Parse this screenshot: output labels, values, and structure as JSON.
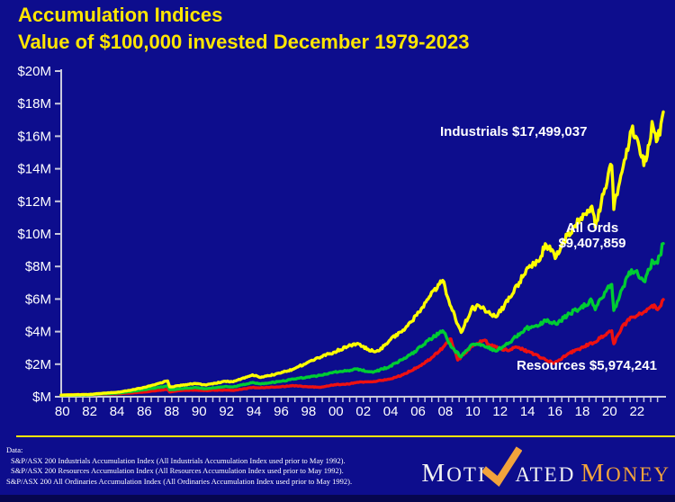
{
  "slide": {
    "title_line1": "Accumulation Indices",
    "title_line2": "Value of $100,000 invested December 1979-2023"
  },
  "chart_data": {
    "type": "line",
    "title": "Accumulation Indices",
    "subtitle": "Value of $100,000 invested December 1979-2023",
    "unit": "millions of dollars (AUD)",
    "grid": "off",
    "legend_position": "direct line labels",
    "x_axis": {
      "start": 1979.92,
      "end": 2023.92,
      "minor_tick_interval_years": 0.5,
      "tick_labels": [
        {
          "label": "80",
          "year": 1980
        },
        {
          "label": "82",
          "year": 1982
        },
        {
          "label": "84",
          "year": 1984
        },
        {
          "label": "86",
          "year": 1986
        },
        {
          "label": "88",
          "year": 1988
        },
        {
          "label": "90",
          "year": 1990
        },
        {
          "label": "92",
          "year": 1992
        },
        {
          "label": "94",
          "year": 1994
        },
        {
          "label": "96",
          "year": 1996
        },
        {
          "label": "98",
          "year": 1998
        },
        {
          "label": "00",
          "year": 2000
        },
        {
          "label": "02",
          "year": 2002
        },
        {
          "label": "04",
          "year": 2004
        },
        {
          "label": "06",
          "year": 2006
        },
        {
          "label": "08",
          "year": 2008
        },
        {
          "label": "10",
          "year": 2010
        },
        {
          "label": "12",
          "year": 2012
        },
        {
          "label": "14",
          "year": 2014
        },
        {
          "label": "16",
          "year": 2016
        },
        {
          "label": "18",
          "year": 2018
        },
        {
          "label": "20",
          "year": 2020
        },
        {
          "label": "22",
          "year": 2022
        }
      ]
    },
    "y_axis": {
      "min": 0,
      "max": 20,
      "tick_interval": 2,
      "tick_labels": [
        "$M",
        "$2M",
        "$4M",
        "$6M",
        "$8M",
        "$10M",
        "$12M",
        "$14M",
        "$16M",
        "$18M",
        "$20M"
      ]
    },
    "series": [
      {
        "name": "Industrials",
        "color": "#ffff00",
        "final_value": 17499037,
        "label_text": "Industrials $17,499,037",
        "points": [
          [
            1979.92,
            0.1
          ],
          [
            1981,
            0.12
          ],
          [
            1982,
            0.14
          ],
          [
            1983,
            0.22
          ],
          [
            1984,
            0.27
          ],
          [
            1985,
            0.4
          ],
          [
            1986,
            0.58
          ],
          [
            1987.7,
            0.97
          ],
          [
            1987.85,
            0.6
          ],
          [
            1988.5,
            0.68
          ],
          [
            1989.7,
            0.82
          ],
          [
            1990.5,
            0.72
          ],
          [
            1991.9,
            0.95
          ],
          [
            1992.5,
            0.92
          ],
          [
            1993.9,
            1.35
          ],
          [
            1994.5,
            1.18
          ],
          [
            1995.9,
            1.45
          ],
          [
            1996.9,
            1.7
          ],
          [
            1997.9,
            2.1
          ],
          [
            1998.9,
            2.45
          ],
          [
            1999.9,
            2.75
          ],
          [
            2000.9,
            3.1
          ],
          [
            2001.5,
            3.25
          ],
          [
            2002.7,
            2.8
          ],
          [
            2003.2,
            2.85
          ],
          [
            2003.9,
            3.45
          ],
          [
            2004.9,
            4.1
          ],
          [
            2005.9,
            5.0
          ],
          [
            2006.9,
            6.2
          ],
          [
            2007.8,
            7.15
          ],
          [
            2008.5,
            5.3
          ],
          [
            2009.15,
            3.95
          ],
          [
            2009.9,
            5.4
          ],
          [
            2010.5,
            5.55
          ],
          [
            2011.7,
            4.9
          ],
          [
            2012.9,
            6.3
          ],
          [
            2013.9,
            7.8
          ],
          [
            2014.9,
            8.4
          ],
          [
            2015.3,
            9.4
          ],
          [
            2016.1,
            8.6
          ],
          [
            2016.9,
            9.9
          ],
          [
            2017.9,
            11.0
          ],
          [
            2018.7,
            11.7
          ],
          [
            2018.95,
            10.4
          ],
          [
            2019.9,
            13.7
          ],
          [
            2020.15,
            14.2
          ],
          [
            2020.3,
            11.5
          ],
          [
            2020.9,
            13.8
          ],
          [
            2021.6,
            16.4
          ],
          [
            2021.9,
            16.0
          ],
          [
            2022.5,
            14.2
          ],
          [
            2022.9,
            15.5
          ],
          [
            2023.1,
            16.9
          ],
          [
            2023.5,
            15.8
          ],
          [
            2023.92,
            17.5
          ]
        ]
      },
      {
        "name": "All Ords",
        "color": "#00cc33",
        "final_value": 9407859,
        "label_line1": "All Ords",
        "label_line2": "$9,407,859",
        "points": [
          [
            1979.92,
            0.1
          ],
          [
            1981,
            0.11
          ],
          [
            1982,
            0.12
          ],
          [
            1983,
            0.19
          ],
          [
            1984,
            0.22
          ],
          [
            1985,
            0.32
          ],
          [
            1986,
            0.44
          ],
          [
            1987.7,
            0.66
          ],
          [
            1987.85,
            0.42
          ],
          [
            1988.5,
            0.48
          ],
          [
            1989.7,
            0.57
          ],
          [
            1990.5,
            0.49
          ],
          [
            1991.9,
            0.63
          ],
          [
            1992.5,
            0.6
          ],
          [
            1993.9,
            0.88
          ],
          [
            1994.5,
            0.78
          ],
          [
            1995.9,
            0.94
          ],
          [
            1996.9,
            1.08
          ],
          [
            1997.9,
            1.2
          ],
          [
            1998.9,
            1.32
          ],
          [
            1999.9,
            1.52
          ],
          [
            2000.9,
            1.6
          ],
          [
            2001.5,
            1.7
          ],
          [
            2002.7,
            1.5
          ],
          [
            2003.9,
            1.85
          ],
          [
            2004.9,
            2.3
          ],
          [
            2005.9,
            2.85
          ],
          [
            2006.9,
            3.55
          ],
          [
            2007.8,
            4.05
          ],
          [
            2008.5,
            3.0
          ],
          [
            2009.15,
            2.45
          ],
          [
            2009.9,
            3.2
          ],
          [
            2010.5,
            3.25
          ],
          [
            2011.7,
            2.8
          ],
          [
            2012.9,
            3.5
          ],
          [
            2013.9,
            4.2
          ],
          [
            2014.9,
            4.4
          ],
          [
            2015.3,
            4.7
          ],
          [
            2016.1,
            4.45
          ],
          [
            2016.9,
            5.0
          ],
          [
            2017.9,
            5.5
          ],
          [
            2018.7,
            5.9
          ],
          [
            2018.95,
            5.35
          ],
          [
            2019.9,
            6.8
          ],
          [
            2020.15,
            6.9
          ],
          [
            2020.3,
            5.3
          ],
          [
            2020.9,
            6.6
          ],
          [
            2021.6,
            7.8
          ],
          [
            2021.9,
            7.7
          ],
          [
            2022.5,
            7.1
          ],
          [
            2022.9,
            7.8
          ],
          [
            2023.1,
            8.4
          ],
          [
            2023.5,
            8.2
          ],
          [
            2023.92,
            9.41
          ]
        ]
      },
      {
        "name": "Resources",
        "color": "#ee1111",
        "final_value": 5974241,
        "label_text": "Resources $5,974,241",
        "points": [
          [
            1979.92,
            0.1
          ],
          [
            1981,
            0.14
          ],
          [
            1982,
            0.12
          ],
          [
            1983,
            0.17
          ],
          [
            1984,
            0.18
          ],
          [
            1985,
            0.23
          ],
          [
            1986,
            0.29
          ],
          [
            1987.7,
            0.45
          ],
          [
            1987.85,
            0.29
          ],
          [
            1988.5,
            0.37
          ],
          [
            1989.7,
            0.41
          ],
          [
            1990.5,
            0.38
          ],
          [
            1991.9,
            0.41
          ],
          [
            1992.5,
            0.38
          ],
          [
            1993.9,
            0.57
          ],
          [
            1994.5,
            0.55
          ],
          [
            1995.9,
            0.61
          ],
          [
            1996.9,
            0.68
          ],
          [
            1997.9,
            0.62
          ],
          [
            1998.9,
            0.58
          ],
          [
            1999.9,
            0.74
          ],
          [
            2000.9,
            0.78
          ],
          [
            2001.5,
            0.88
          ],
          [
            2002.7,
            0.92
          ],
          [
            2003.9,
            1.08
          ],
          [
            2004.9,
            1.35
          ],
          [
            2005.9,
            1.8
          ],
          [
            2006.9,
            2.3
          ],
          [
            2007.9,
            3.1
          ],
          [
            2008.4,
            3.55
          ],
          [
            2008.9,
            2.25
          ],
          [
            2009.9,
            3.1
          ],
          [
            2010.8,
            3.45
          ],
          [
            2011.5,
            3.1
          ],
          [
            2012.5,
            2.85
          ],
          [
            2013.2,
            3.05
          ],
          [
            2014.5,
            2.6
          ],
          [
            2015.9,
            2.05
          ],
          [
            2016.9,
            2.6
          ],
          [
            2017.9,
            3.0
          ],
          [
            2018.9,
            3.35
          ],
          [
            2019.9,
            3.95
          ],
          [
            2020.15,
            4.05
          ],
          [
            2020.3,
            3.25
          ],
          [
            2020.9,
            4.3
          ],
          [
            2021.6,
            4.9
          ],
          [
            2022.5,
            5.2
          ],
          [
            2022.9,
            5.45
          ],
          [
            2023.1,
            5.6
          ],
          [
            2023.5,
            5.35
          ],
          [
            2023.92,
            5.97
          ]
        ]
      }
    ]
  },
  "footnote": {
    "heading": "Data:",
    "lines": [
      "S&P/ASX 200 Industrials Accumulation Index (All Industrials Accumulation Index used prior to May 1992).",
      "S&P/ASX 200 Resources Accumulation Index (All Resources Accumulation Index used prior to May 1992).",
      "S&P/ASX 200 All Ordinaries Accumulation Index (All Ordinaries Accumulation Index used prior to May 1992)."
    ]
  },
  "logo": {
    "part1": "MOTI",
    "part2": "ATED",
    "part3": "MONEY",
    "checkmark_color": "#f2a33c"
  },
  "colors": {
    "background": "#0d0d8d",
    "title_yellow": "#ffe600",
    "axis": "#c9c9dd",
    "label_white": "#ffffff",
    "industrials_line": "#ffff00",
    "all_ords_line": "#00cc33",
    "resources_line": "#ee1111",
    "logo_orange": "#f2a33c",
    "separator_yellow": "#ffe600",
    "bottom_strip": "#06064f"
  }
}
